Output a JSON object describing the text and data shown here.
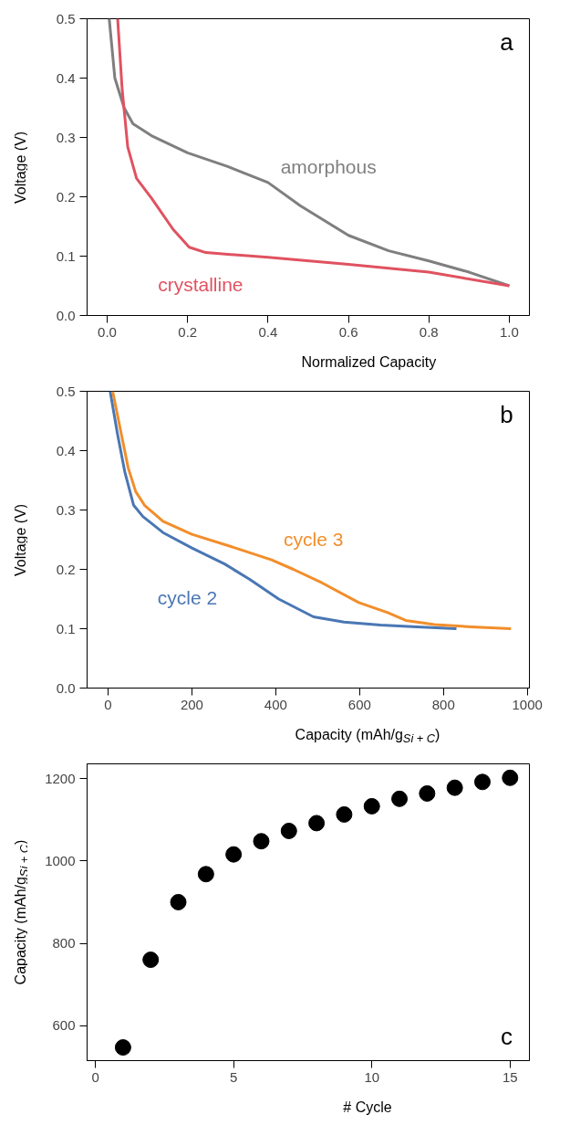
{
  "chart_data": [
    {
      "type": "line",
      "xlabel": "Normalized Capacity",
      "ylabel": "Voltage (V)",
      "xlim": [
        -0.05,
        1.05
      ],
      "ylim": [
        0,
        0.5
      ],
      "xticks": [
        {
          "value": 0,
          "label": "0.0"
        },
        0.2,
        0.4,
        0.6,
        0.8,
        {
          "value": 1,
          "label": "1.0"
        }
      ],
      "yticks": [
        {
          "value": 0,
          "label": "0.0"
        },
        0.1,
        0.2,
        0.3,
        0.4,
        0.5
      ],
      "grid": false,
      "legend": false,
      "marker": "none",
      "line_style": "solid",
      "series": [
        {
          "x": [
            0.005,
            0.019,
            0.042,
            0.064,
            0.11,
            0.2,
            0.3,
            0.4,
            0.48,
            0.6,
            0.7,
            0.8,
            0.9,
            1.0
          ],
          "values": [
            0.5,
            0.4,
            0.35,
            0.323,
            0.303,
            0.274,
            0.251,
            0.224,
            0.185,
            0.135,
            0.109,
            0.092,
            0.073,
            0.05
          ],
          "color": "#7f7f7f",
          "name": "amorphous"
        },
        {
          "x": [
            0.026,
            0.037,
            0.051,
            0.073,
            0.11,
            0.164,
            0.204,
            0.245,
            0.4,
            0.6,
            0.8,
            1.0
          ],
          "values": [
            0.5,
            0.383,
            0.284,
            0.231,
            0.198,
            0.145,
            0.115,
            0.106,
            0.098,
            0.086,
            0.073,
            0.05
          ],
          "color": "#e05260",
          "name": "crystalline"
        }
      ],
      "annotations": [
        "a"
      ]
    },
    {
      "type": "line",
      "xlabel": "Capacity (mAh/g$_{Si + C}$)",
      "ylabel": "Voltage (V)",
      "xlim": [
        -50,
        1005
      ],
      "ylim": [
        0,
        0.5
      ],
      "xticks": [
        0,
        200,
        400,
        600,
        800,
        1000
      ],
      "yticks": [
        {
          "value": 0,
          "label": "0.0"
        },
        0.1,
        0.2,
        0.3,
        0.4,
        0.5
      ],
      "grid": false,
      "legend": false,
      "marker": "none",
      "line_style": "solid",
      "series": [
        {
          "x": [
            5,
            22,
            40,
            61,
            83,
            131,
            200,
            278,
            338,
            407,
            490,
            563,
            650,
            736,
            831
          ],
          "values": [
            0.5,
            0.43,
            0.364,
            0.308,
            0.289,
            0.262,
            0.236,
            0.209,
            0.183,
            0.15,
            0.12,
            0.111,
            0.106,
            0.103,
            0.1
          ],
          "color": "#4a77b4",
          "name": "cycle 2"
        },
        {
          "x": [
            11,
            31,
            48,
            66,
            87,
            131,
            200,
            304,
            390,
            442,
            511,
            598,
            667,
            710,
            779,
            866,
            961
          ],
          "values": [
            0.5,
            0.43,
            0.371,
            0.331,
            0.308,
            0.281,
            0.259,
            0.236,
            0.216,
            0.2,
            0.177,
            0.144,
            0.127,
            0.114,
            0.107,
            0.103,
            0.1
          ],
          "color": "#f28e2b",
          "name": "cycle 3"
        }
      ],
      "annotations": [
        "b"
      ]
    },
    {
      "type": "scatter",
      "xlabel": "# Cycle",
      "ylabel": "Capacity (mAh/g$_{Si + C}$)",
      "xlim": [
        -0.3,
        15.7
      ],
      "ylim": [
        515,
        1236
      ],
      "xticks": [
        0,
        5,
        10,
        15
      ],
      "yticks": [
        600,
        800,
        1000,
        1200
      ],
      "grid": false,
      "legend": false,
      "marker": "circle",
      "series": [
        {
          "x": [
            1,
            2,
            3,
            4,
            5,
            6,
            7,
            8,
            9,
            10,
            11,
            12,
            13,
            14,
            15
          ],
          "values": [
            547,
            760,
            900,
            968,
            1016,
            1048,
            1073,
            1092,
            1113,
            1133,
            1151,
            1164,
            1178,
            1192,
            1202
          ],
          "color": "#000000"
        }
      ],
      "annotations": [
        "c"
      ]
    }
  ]
}
